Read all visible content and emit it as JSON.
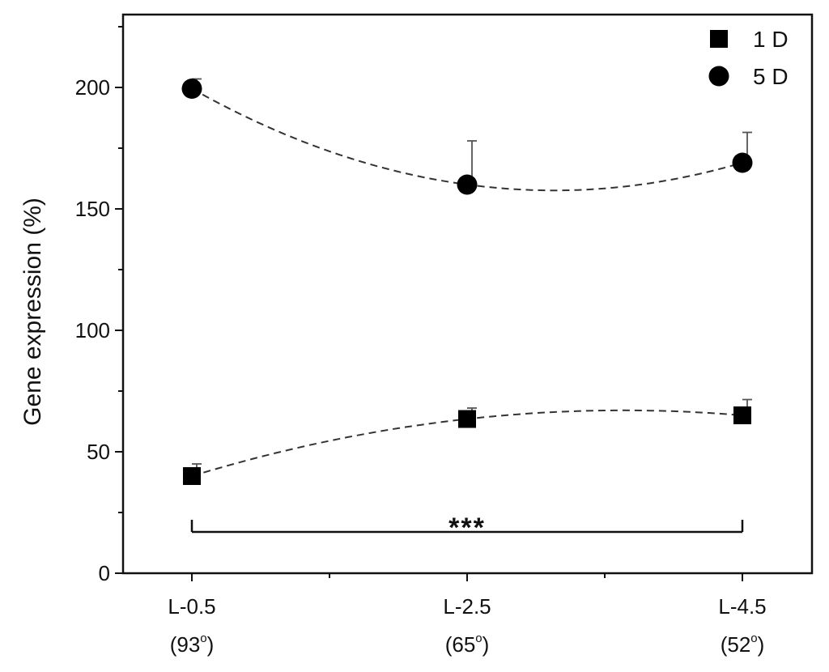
{
  "chart_data": {
    "type": "scatter",
    "title": "",
    "ylabel": "Gene expression (%)",
    "xlabel": "",
    "ylim": [
      0,
      230
    ],
    "yticks": [
      0,
      50,
      100,
      150,
      200
    ],
    "categories": [
      {
        "label": "L-0.5",
        "angle": "93"
      },
      {
        "label": "L-2.5",
        "angle": "65"
      },
      {
        "label": "L-4.5",
        "angle": "52"
      }
    ],
    "degree_symbol": "o",
    "series": [
      {
        "name": "1 D",
        "marker": "square",
        "values": [
          40,
          63.5,
          65
        ],
        "errors": [
          5,
          4.5,
          6.5
        ]
      },
      {
        "name": "5 D",
        "marker": "circle",
        "values": [
          199.5,
          160,
          169
        ],
        "errors": [
          4,
          18,
          12.5
        ]
      }
    ],
    "significance": {
      "label": "***",
      "from": 0,
      "to": 2,
      "y": 17
    },
    "legend_position": "top-right",
    "grid": false,
    "trend_lines": "dashed"
  }
}
